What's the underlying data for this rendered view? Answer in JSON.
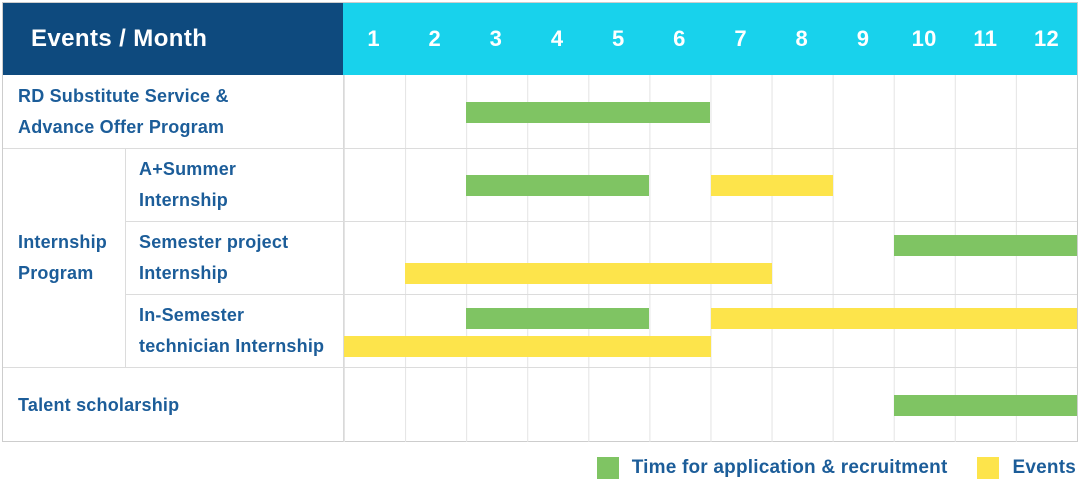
{
  "header": {
    "title": "Events / Month",
    "months": [
      "1",
      "2",
      "3",
      "4",
      "5",
      "6",
      "7",
      "8",
      "9",
      "10",
      "11",
      "12"
    ]
  },
  "colors": {
    "header_bg": "#0e4a7e",
    "month_header_bg": "#18d2ec",
    "header_text": "#ffffff",
    "label_text": "#1c5d99",
    "application_green": "#7fc463",
    "events_yellow": "#fde44b",
    "grid_line": "#e4e4e4"
  },
  "chart_data": {
    "type": "gantt",
    "title": "Events / Month",
    "x_axis": {
      "label": "Month",
      "categories": [
        1,
        2,
        3,
        4,
        5,
        6,
        7,
        8,
        9,
        10,
        11,
        12
      ],
      "range": [
        1,
        12
      ]
    },
    "grid": true,
    "legend_position": "bottom-right",
    "series_legend": [
      {
        "key": "application",
        "label": "Time for application & recruitment",
        "color": "#7fc463"
      },
      {
        "key": "events",
        "label": "Events",
        "color": "#fde44b"
      }
    ],
    "groups": [
      {
        "label": "Internship Program",
        "row_indexes": [
          1,
          2,
          3
        ]
      }
    ],
    "rows": [
      {
        "label": "RD Substitute Service & Advance Offer Program",
        "label_lines": [
          "RD Substitute Service &",
          "Advance Offer Program"
        ],
        "group": null,
        "bars": [
          {
            "series": "application",
            "start_month": 3,
            "end_month": 6,
            "lane": "center"
          }
        ]
      },
      {
        "label": "A+Summer Internship",
        "label_lines": [
          "A+Summer",
          "Internship"
        ],
        "group": "Internship Program",
        "bars": [
          {
            "series": "application",
            "start_month": 3,
            "end_month": 5,
            "lane": "center"
          },
          {
            "series": "events",
            "start_month": 7,
            "end_month": 8,
            "lane": "center"
          }
        ]
      },
      {
        "label": "Semester project Internship",
        "label_lines": [
          "Semester project",
          "Internship"
        ],
        "group": "Internship Program",
        "bars": [
          {
            "series": "application",
            "start_month": 10,
            "end_month": 12,
            "lane": "top"
          },
          {
            "series": "events",
            "start_month": 2,
            "end_month": 7,
            "lane": "bottom"
          }
        ]
      },
      {
        "label": "In-Semester technician Internship",
        "label_lines": [
          "In-Semester",
          "technician Internship"
        ],
        "group": "Internship Program",
        "bars": [
          {
            "series": "application",
            "start_month": 3,
            "end_month": 5,
            "lane": "top"
          },
          {
            "series": "events",
            "start_month": 7,
            "end_month": 12,
            "lane": "top"
          },
          {
            "series": "events",
            "start_month": 1,
            "end_month": 6,
            "lane": "bottom"
          }
        ]
      },
      {
        "label": "Talent scholarship",
        "label_lines": [
          "Talent scholarship"
        ],
        "group": null,
        "bars": [
          {
            "series": "application",
            "start_month": 10,
            "end_month": 12,
            "lane": "center"
          }
        ]
      }
    ]
  }
}
